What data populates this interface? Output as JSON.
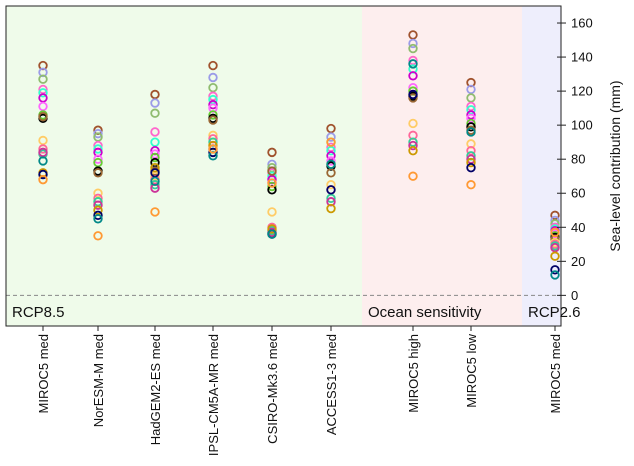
{
  "chart_data": {
    "type": "scatter",
    "ylabel": "Sea-level contribution (mm)",
    "ylim": [
      -18,
      170
    ],
    "yticks": [
      0,
      20,
      40,
      60,
      80,
      100,
      120,
      140,
      160
    ],
    "grid": false,
    "zero_line": true,
    "regions": [
      {
        "label": "RCP8.5",
        "color": "#effbea",
        "categories": [
          "MIROC5 med",
          "NorESM-M med",
          "HadGEM2-ES med",
          "IPSL-CM5A-MR med",
          "CSIRO-Mk3.6 med",
          "ACCESS1-3 med"
        ]
      },
      {
        "label": "Ocean  sensitivity",
        "color": "#fdeeee",
        "categories": [
          "MIROC5 high",
          "MIROC5 low"
        ]
      },
      {
        "label": "RCP2.6",
        "color": "#eeeefc",
        "categories": [
          "MIROC5 med"
        ]
      }
    ],
    "categories": [
      "MIROC5 med",
      "NorESM-M med",
      "HadGEM2-ES med",
      "IPSL-CM5A-MR med",
      "CSIRO-Mk3.6 med",
      "ACCESS1-3 med",
      "MIROC5 high",
      "MIROC5 low",
      "MIROC5 med"
    ],
    "marker_colors": [
      "#a0522d",
      "#9b9be8",
      "#8fbc6f",
      "#ff66cc",
      "#33ffcc",
      "#cc00cc",
      "#ff66ff",
      "#66cc33",
      "#000000",
      "#996633",
      "#ffcc66",
      "#ff6699",
      "#33cc99",
      "#cc3399",
      "#cc9900",
      "#000066",
      "#008888",
      "#ff9933"
    ],
    "series": [
      {
        "category_index": 0,
        "values": [
          135,
          131,
          127,
          121,
          119,
          116,
          111,
          106,
          104,
          105,
          91,
          86,
          83,
          84,
          72,
          71,
          79,
          68
        ]
      },
      {
        "category_index": 1,
        "values": [
          97,
          95,
          93,
          88,
          86,
          84,
          80,
          78,
          73,
          72,
          60,
          57,
          55,
          53,
          50,
          47,
          45,
          35
        ]
      },
      {
        "category_index": 2,
        "values": [
          118,
          113,
          107,
          96,
          90,
          85,
          83,
          81,
          78,
          73,
          70,
          68,
          65,
          63,
          75,
          72,
          67,
          49
        ]
      },
      {
        "category_index": 3,
        "values": [
          135,
          128,
          122,
          117,
          115,
          112,
          110,
          106,
          104,
          103,
          94,
          92,
          90,
          86,
          88,
          84,
          82,
          86
        ]
      },
      {
        "category_index": 4,
        "values": [
          84,
          77,
          75,
          72,
          70,
          68,
          66,
          64,
          62,
          73,
          49,
          40,
          38,
          37,
          39,
          36,
          36,
          66
        ]
      },
      {
        "category_index": 5,
        "values": [
          98,
          93,
          90,
          87,
          85,
          82,
          79,
          77,
          76,
          72,
          65,
          62,
          57,
          55,
          51,
          62,
          77,
          90
        ]
      },
      {
        "category_index": 6,
        "values": [
          153,
          148,
          145,
          138,
          133,
          129,
          122,
          120,
          117,
          116,
          101,
          94,
          90,
          88,
          85,
          118,
          136,
          70
        ]
      },
      {
        "category_index": 7,
        "values": [
          125,
          121,
          116,
          111,
          109,
          106,
          104,
          101,
          99,
          97,
          89,
          85,
          82,
          80,
          78,
          75,
          96,
          65
        ]
      },
      {
        "category_index": 8,
        "values": [
          47,
          44,
          42,
          40,
          39,
          38,
          36,
          35,
          34,
          33,
          31,
          30,
          29,
          28,
          23,
          15,
          12,
          37
        ]
      }
    ]
  }
}
